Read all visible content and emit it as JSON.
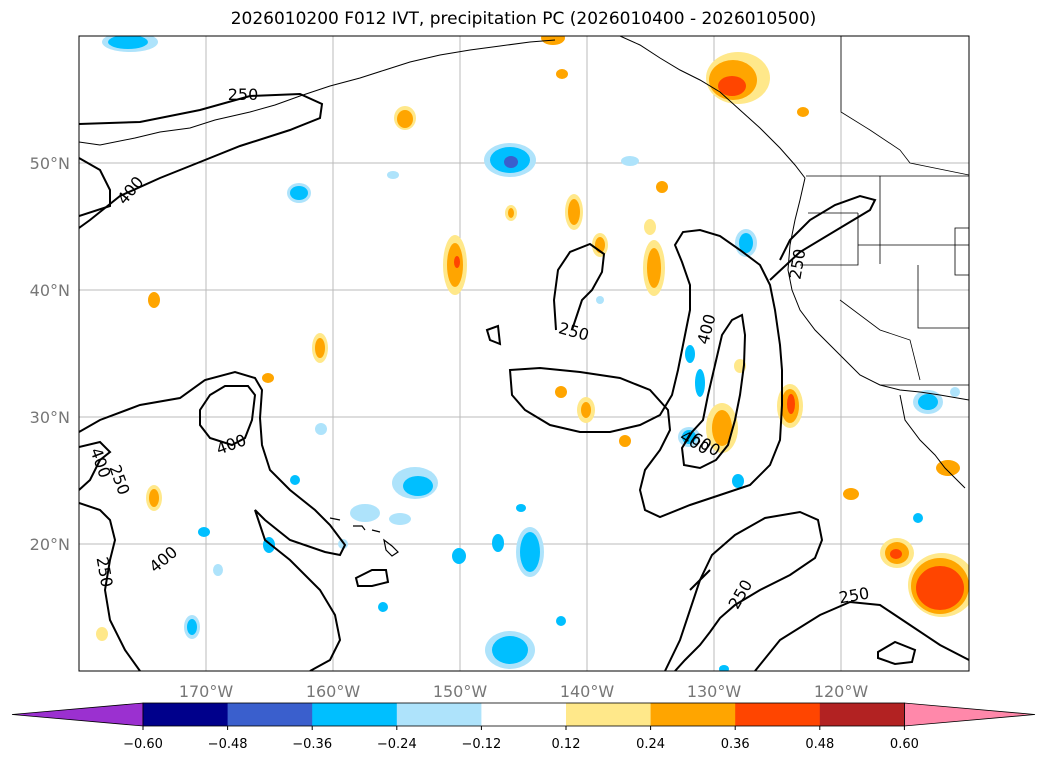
{
  "title": "2026010200 F012 IVT, precipitation PC (2026010400 - 2026010500)",
  "map": {
    "lat_labels": [
      "50°N",
      "40°N",
      "30°N",
      "20°N"
    ],
    "lon_labels": [
      "170°W",
      "160°W",
      "150°W",
      "140°W",
      "130°W",
      "120°W"
    ],
    "extent": {
      "lon_min": -180,
      "lon_max": -110,
      "lat_min": 10,
      "lat_max": 60
    },
    "grid": true
  },
  "contour_labels": [
    "250",
    "400",
    "400",
    "250",
    "400",
    "400",
    "250",
    "400",
    "250",
    "250",
    "400",
    "600",
    "250",
    "250",
    "250"
  ],
  "colorbar": {
    "ticks": [
      "−0.60",
      "−0.48",
      "−0.36",
      "−0.24",
      "−0.12",
      "0.12",
      "0.24",
      "0.36",
      "0.48",
      "0.60"
    ],
    "colors": [
      "#9b30d0",
      "#00008b",
      "#3a5fcd",
      "#00bfff",
      "#aee3fb",
      "#ffffff",
      "#ffe88a",
      "#ffa500",
      "#ff4500",
      "#b22222",
      "#ff88aa"
    ]
  }
}
